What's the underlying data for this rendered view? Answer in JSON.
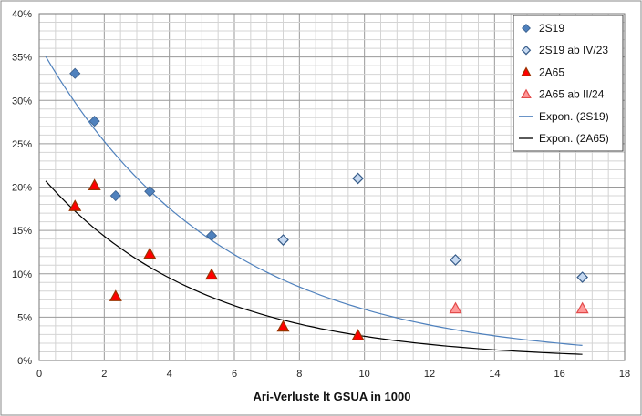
{
  "chart_data": {
    "type": "scatter",
    "xlabel": "Ari-Verluste lt GSUA in 1000",
    "ylabel": "",
    "title": "",
    "xlim": [
      0,
      18
    ],
    "ylim": [
      0,
      0.4
    ],
    "x_ticks": [
      "0",
      "2",
      "4",
      "6",
      "8",
      "10",
      "12",
      "14",
      "16",
      "18"
    ],
    "y_ticks": [
      "0%",
      "5%",
      "10%",
      "15%",
      "20%",
      "25%",
      "30%",
      "35%",
      "40%"
    ],
    "grid": true,
    "legend_position": "top-right",
    "series": [
      {
        "name": "2S19",
        "marker": "diamond",
        "color": "#4f81bd",
        "points": [
          [
            1.1,
            0.331
          ],
          [
            1.7,
            0.276
          ],
          [
            2.35,
            0.19
          ],
          [
            3.4,
            0.195
          ],
          [
            5.3,
            0.144
          ],
          [
            7.5,
            0.139
          ],
          [
            9.8,
            0.21
          ],
          [
            12.8,
            0.116
          ],
          [
            16.7,
            0.096
          ]
        ]
      },
      {
        "name": "2S19 ab IV/23",
        "marker": "diamond-open",
        "color": "#c6d9f1",
        "points": [
          [
            7.5,
            0.139
          ],
          [
            9.8,
            0.21
          ],
          [
            12.8,
            0.116
          ],
          [
            16.7,
            0.096
          ]
        ]
      },
      {
        "name": "2A65",
        "marker": "triangle",
        "color": "#ff0000",
        "points": [
          [
            1.1,
            0.178
          ],
          [
            1.7,
            0.202
          ],
          [
            2.35,
            0.074
          ],
          [
            3.4,
            0.123
          ],
          [
            5.3,
            0.099
          ],
          [
            7.5,
            0.039
          ],
          [
            9.8,
            0.029
          ]
        ]
      },
      {
        "name": "2A65 ab II/24",
        "marker": "triangle-open",
        "color": "#ff9999",
        "points": [
          [
            12.8,
            0.06
          ],
          [
            16.7,
            0.06
          ]
        ]
      },
      {
        "name": "Expon. (2S19)",
        "type": "trend",
        "color": "#4f81bd",
        "a": 0.3636,
        "b": 0.1819,
        "x_range": [
          0.2,
          16.7
        ]
      },
      {
        "name": "Expon. (2A65)",
        "type": "trend",
        "color": "#000000",
        "a": 0.2157,
        "b": 0.2043,
        "x_range": [
          0.2,
          16.7
        ]
      }
    ]
  }
}
